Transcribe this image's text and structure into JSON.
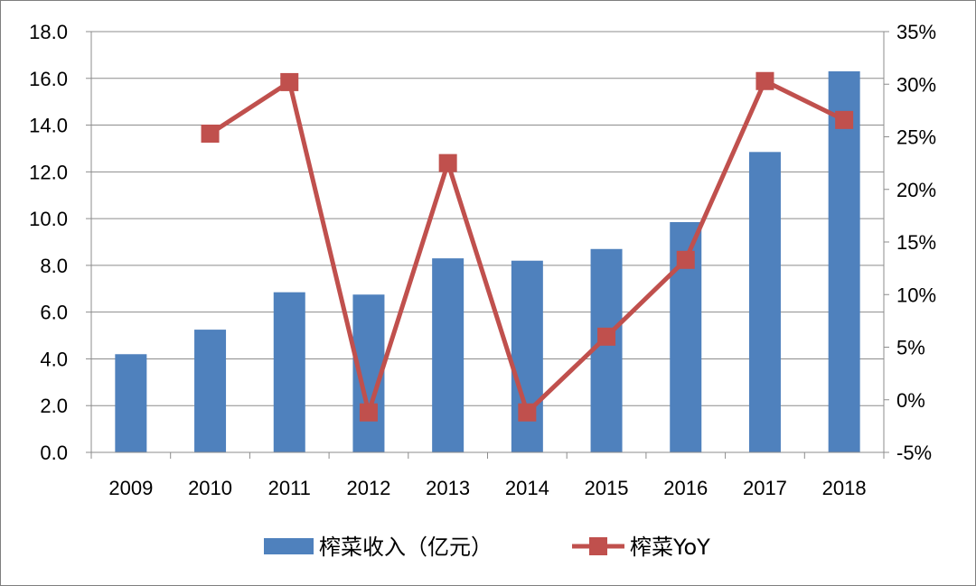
{
  "chart_data": {
    "type": "bar",
    "categories": [
      "2009",
      "2010",
      "2011",
      "2012",
      "2013",
      "2014",
      "2015",
      "2016",
      "2017",
      "2018"
    ],
    "series": [
      {
        "name": "榨菜收入（亿元）",
        "type": "bar",
        "axis": "left",
        "color": "#4f81bd",
        "values": [
          4.2,
          5.25,
          6.85,
          6.75,
          8.3,
          8.2,
          8.7,
          9.85,
          12.85,
          16.3
        ]
      },
      {
        "name": "榨菜YoY",
        "type": "line",
        "axis": "right",
        "color": "#c0504d",
        "marker": "square",
        "values": [
          null,
          25.3,
          30.2,
          -1.2,
          22.5,
          -1.2,
          6.0,
          13.3,
          30.3,
          26.6
        ]
      }
    ],
    "y_left": {
      "ylim": [
        0,
        18
      ],
      "ticks": [
        0,
        2,
        4,
        6,
        8,
        10,
        12,
        14,
        16,
        18
      ],
      "tick_labels": [
        "0.0",
        "2.0",
        "4.0",
        "6.0",
        "8.0",
        "10.0",
        "12.0",
        "14.0",
        "16.0",
        "18.0"
      ]
    },
    "y_right": {
      "ylim": [
        -5,
        35
      ],
      "ticks": [
        -5,
        0,
        5,
        10,
        15,
        20,
        25,
        30,
        35
      ],
      "tick_labels": [
        "-5%",
        "0%",
        "5%",
        "10%",
        "15%",
        "20%",
        "25%",
        "30%",
        "35%"
      ]
    },
    "grid": true,
    "legend": "bottom",
    "xlabel": "",
    "ylabel": ""
  }
}
